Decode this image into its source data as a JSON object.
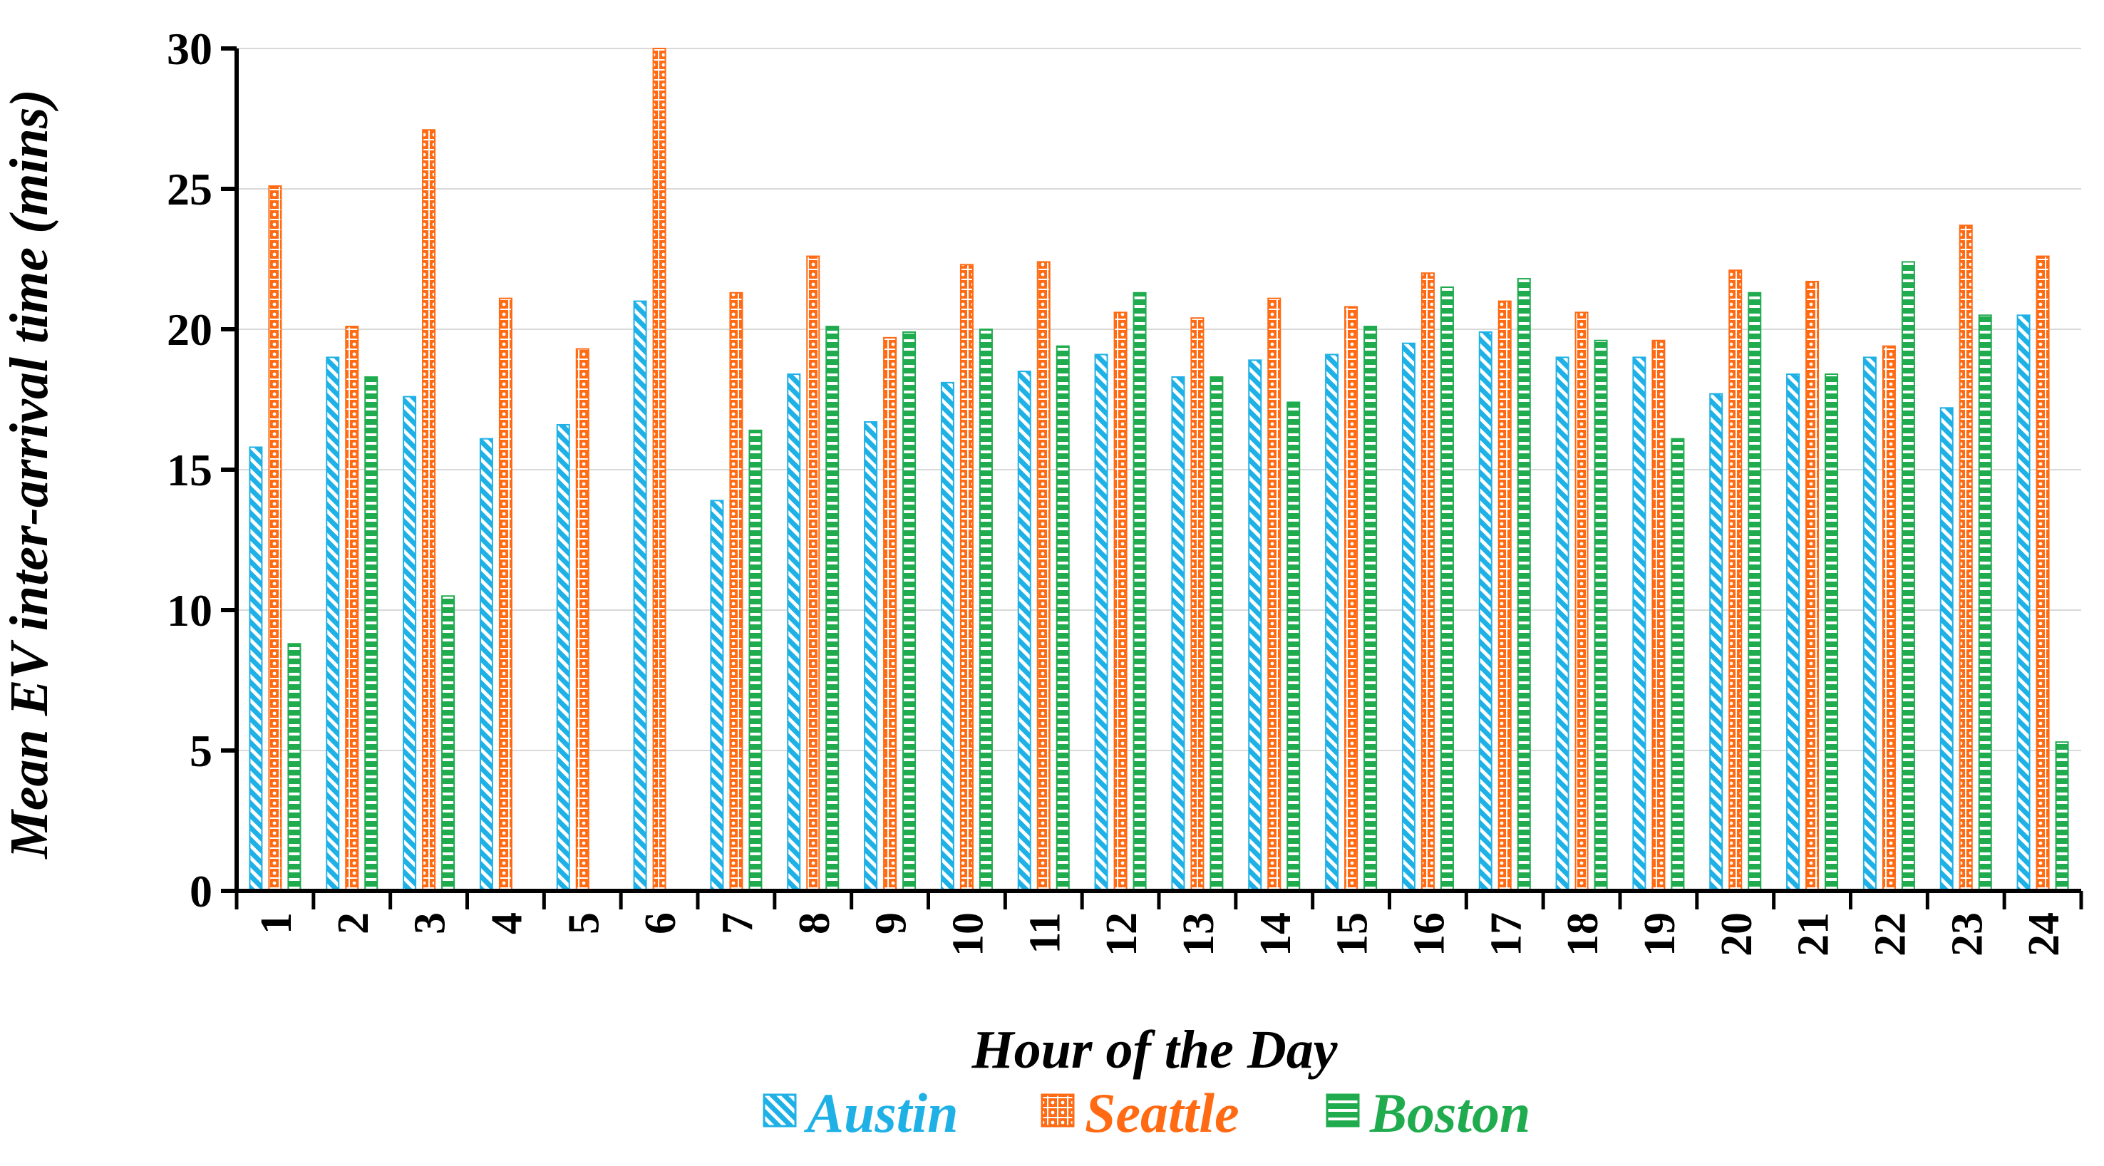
{
  "chart_data": {
    "type": "bar",
    "title": "",
    "xlabel": "Hour of the Day",
    "ylabel": "Mean EV inter-arrival time (mins)",
    "ylim": [
      0,
      30
    ],
    "yticks": [
      0,
      5,
      10,
      15,
      20,
      25,
      30
    ],
    "grid": true,
    "legend_position": "bottom",
    "categories": [
      "1",
      "2",
      "3",
      "4",
      "5",
      "6",
      "7",
      "8",
      "9",
      "10",
      "11",
      "12",
      "13",
      "14",
      "15",
      "16",
      "17",
      "18",
      "19",
      "20",
      "21",
      "22",
      "23",
      "24"
    ],
    "series": [
      {
        "name": "Austin",
        "color": "#1fb1e6",
        "values": [
          15.8,
          19.0,
          17.6,
          16.1,
          16.6,
          21.0,
          13.9,
          18.4,
          16.7,
          18.1,
          18.5,
          19.1,
          18.3,
          18.9,
          19.1,
          19.5,
          19.9,
          19.0,
          19.0,
          17.7,
          18.4,
          19.0,
          17.2,
          20.5
        ]
      },
      {
        "name": "Seattle",
        "color": "#ff6a13",
        "values": [
          25.1,
          20.1,
          27.1,
          21.1,
          19.3,
          30.0,
          21.3,
          22.6,
          19.7,
          22.3,
          22.4,
          20.6,
          20.4,
          21.1,
          20.8,
          22.0,
          21.0,
          20.6,
          19.6,
          22.1,
          21.7,
          19.4,
          23.7,
          22.6
        ]
      },
      {
        "name": "Boston",
        "color": "#1fab4e",
        "values": [
          8.8,
          18.3,
          10.5,
          null,
          null,
          null,
          16.4,
          20.1,
          19.9,
          20.0,
          19.4,
          21.3,
          18.3,
          17.4,
          20.1,
          21.5,
          21.8,
          19.6,
          16.1,
          21.3,
          18.4,
          22.4,
          20.5,
          5.3
        ]
      }
    ]
  }
}
